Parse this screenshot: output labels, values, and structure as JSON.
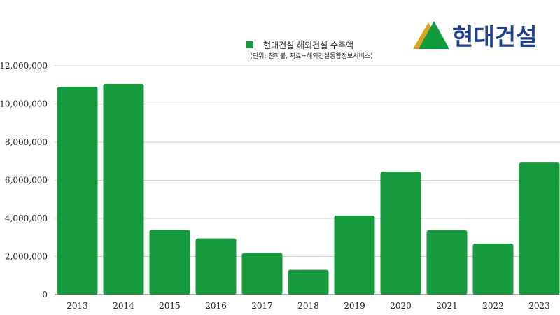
{
  "chart_data": {
    "type": "bar",
    "categories": [
      "2013",
      "2014",
      "2015",
      "2016",
      "2017",
      "2018",
      "2019",
      "2020",
      "2021",
      "2022",
      "2023"
    ],
    "series": [
      {
        "name": "현대건설 해외건설 수주액",
        "values": [
          10900000,
          11050000,
          3400000,
          2950000,
          2180000,
          1300000,
          4150000,
          6450000,
          3380000,
          2680000,
          6930000
        ]
      }
    ],
    "subtitle": "(단위: 천미불, 자료=해외건설통합정보서비스)",
    "ylim": [
      0,
      12000000
    ],
    "yticks": [
      "0",
      "2,000,000",
      "4,000,000",
      "6,000,000",
      "8,000,000",
      "10,000,000",
      "12,000,000"
    ],
    "ytick_values": [
      0,
      2000000,
      4000000,
      6000000,
      8000000,
      10000000,
      12000000
    ],
    "grid": true,
    "legend_position": "top-center",
    "colors": {
      "bar": "#159a3d",
      "grid": "#d0d0d0",
      "axis": "#555555"
    }
  },
  "logo": {
    "text": "현대건설",
    "colors": {
      "triangle_green": "#129a3f",
      "triangle_gold": "#d9a520",
      "text": "#1e3f8f"
    }
  }
}
